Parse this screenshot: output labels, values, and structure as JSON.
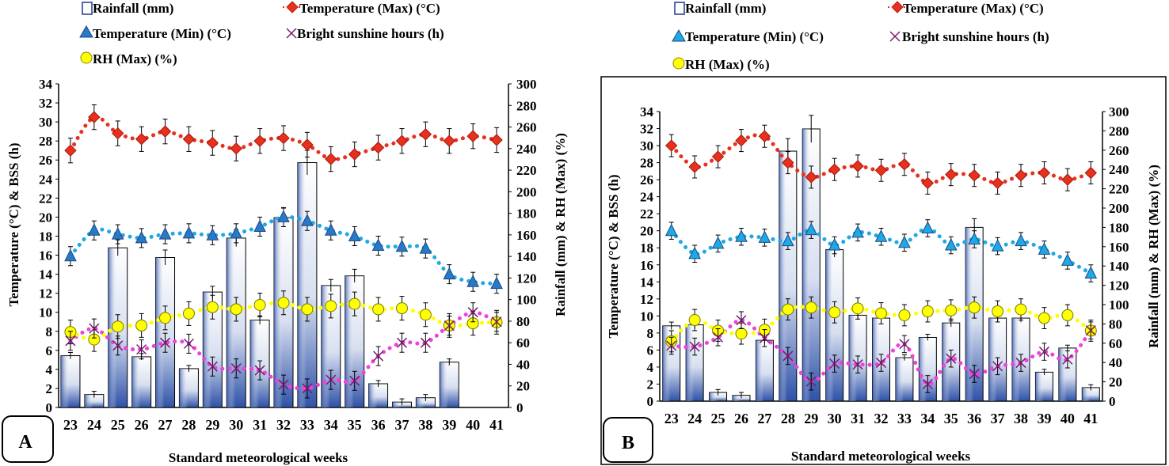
{
  "colors": {
    "rain_fill_dark": "#2f52a8",
    "rain_fill_light": "#ffffff",
    "tmax": "#e8301e",
    "tmin": "#2a78c8",
    "tmin_trend": "#1fa8e6",
    "bss": "#7a1a6e",
    "bss_trend": "#f040e0",
    "rh": "#ffff00",
    "rh_trend": "#ffff00",
    "axis": "#000000"
  },
  "legend": {
    "rainfall": "Rainfall (mm)",
    "tmax": "Temperature (Max) (°C)",
    "tmin": "Temperature (Min) (°C)",
    "bss": "Bright sunshine hours (h)",
    "rh": "RH (Max) (%)"
  },
  "chart_data": [
    {
      "panel": "A",
      "type": "bar",
      "xlabel": "Standard meteorological weeks",
      "ylabel_left": "Temperature (°C) & BSS (h)",
      "ylabel_right": "Rainfall (mm) & RH (Max) (%)",
      "ylim_left": [
        0,
        34
      ],
      "ylim_right": [
        0,
        300
      ],
      "left_ticks": [
        0,
        2,
        4,
        6,
        8,
        10,
        12,
        14,
        16,
        18,
        20,
        22,
        24,
        26,
        28,
        30,
        32,
        34
      ],
      "right_ticks": [
        0,
        20,
        40,
        60,
        80,
        100,
        120,
        140,
        160,
        180,
        200,
        220,
        240,
        260,
        280,
        300
      ],
      "categories": [
        "23",
        "24",
        "25",
        "26",
        "27",
        "28",
        "29",
        "30",
        "31",
        "32",
        "33",
        "34",
        "35",
        "36",
        "37",
        "38",
        "39",
        "40",
        "41"
      ],
      "series": [
        {
          "name": "Rainfall (mm)",
          "axis": "right",
          "kind": "bar",
          "values": [
            48,
            12,
            148,
            47,
            139,
            36,
            107,
            157,
            81,
            176,
            227,
            113,
            122,
            22,
            5,
            9,
            42,
            0,
            0
          ]
        },
        {
          "name": "Temperature (Max) (°C)",
          "axis": "left",
          "kind": "line",
          "values": [
            27.0,
            30.5,
            28.8,
            28.2,
            29.0,
            28.2,
            27.8,
            27.2,
            28.0,
            28.3,
            27.6,
            26.1,
            26.6,
            27.3,
            28.0,
            28.7,
            28.0,
            28.5,
            28.1
          ]
        },
        {
          "name": "Temperature (Min) (°C)",
          "axis": "left",
          "kind": "line",
          "values": [
            15.9,
            18.6,
            18.2,
            17.8,
            18.2,
            18.3,
            18.1,
            18.3,
            19.0,
            20.0,
            19.6,
            18.6,
            18.0,
            17.0,
            16.9,
            16.7,
            14.0,
            13.2,
            13.0
          ]
        },
        {
          "name": "Bright sunshine hours (h)",
          "axis": "left",
          "kind": "line",
          "values": [
            7.0,
            8.3,
            6.5,
            6.1,
            6.8,
            6.7,
            4.3,
            4.1,
            3.9,
            2.4,
            2.0,
            2.9,
            2.8,
            5.4,
            6.8,
            6.8,
            8.6,
            10.0,
            9.0
          ]
        },
        {
          "name": "RH (Max) (%)",
          "axis": "right",
          "kind": "line",
          "values": [
            70,
            63,
            75,
            76,
            83,
            87,
            93,
            91,
            95,
            97,
            91,
            94,
            96,
            91,
            92,
            86,
            76,
            78,
            79
          ]
        }
      ]
    },
    {
      "panel": "B",
      "type": "bar",
      "xlabel": "Standard meteorological weeks",
      "ylabel_left": "Temperature (°C) & BSS (h)",
      "ylabel_right": "Rainfall (mm) & RH (Max) (%)",
      "ylim_left": [
        0,
        34
      ],
      "ylim_right": [
        0,
        300
      ],
      "left_ticks": [
        0,
        2,
        4,
        6,
        8,
        10,
        12,
        14,
        16,
        18,
        20,
        22,
        24,
        26,
        28,
        30,
        32,
        34
      ],
      "right_ticks": [
        0,
        20,
        40,
        60,
        80,
        100,
        120,
        140,
        160,
        180,
        200,
        220,
        240,
        260,
        280,
        300
      ],
      "categories": [
        "23",
        "24",
        "25",
        "26",
        "27",
        "28",
        "29",
        "30",
        "31",
        "32",
        "33",
        "34",
        "35",
        "36",
        "37",
        "38",
        "39",
        "40",
        "41"
      ],
      "series": [
        {
          "name": "Rainfall (mm)",
          "axis": "right",
          "kind": "bar",
          "values": [
            78,
            79,
            9,
            6,
            63,
            259,
            282,
            157,
            89,
            86,
            45,
            66,
            81,
            180,
            86,
            86,
            30,
            55,
            14
          ]
        },
        {
          "name": "Temperature (Max) (°C)",
          "axis": "left",
          "kind": "line",
          "values": [
            30.0,
            27.5,
            28.7,
            30.6,
            31.1,
            28.0,
            26.3,
            27.2,
            27.6,
            27.1,
            27.8,
            25.6,
            26.6,
            26.5,
            25.6,
            26.5,
            26.8,
            26.0,
            26.8
          ]
        },
        {
          "name": "Temperature (Min) (°C)",
          "axis": "left",
          "kind": "line",
          "values": [
            20.0,
            17.3,
            18.5,
            19.3,
            19.2,
            18.8,
            20.1,
            18.3,
            19.8,
            19.3,
            18.6,
            20.3,
            18.3,
            19.0,
            18.2,
            18.8,
            17.8,
            16.5,
            15.0
          ]
        },
        {
          "name": "Bright sunshine hours (h)",
          "axis": "left",
          "kind": "line",
          "values": [
            6.5,
            6.4,
            7.5,
            9.5,
            7.4,
            5.3,
            2.3,
            4.4,
            4.3,
            4.5,
            6.7,
            2.0,
            5.0,
            3.2,
            4.1,
            4.5,
            5.8,
            4.9,
            8.3
          ]
        },
        {
          "name": "RH (Max) (%)",
          "axis": "right",
          "kind": "line",
          "values": [
            62,
            84,
            73,
            70,
            74,
            95,
            97,
            92,
            96,
            91,
            89,
            93,
            94,
            97,
            93,
            95,
            86,
            89,
            73
          ]
        }
      ]
    }
  ],
  "panels": [
    {
      "label": "A"
    },
    {
      "label": "B"
    }
  ]
}
